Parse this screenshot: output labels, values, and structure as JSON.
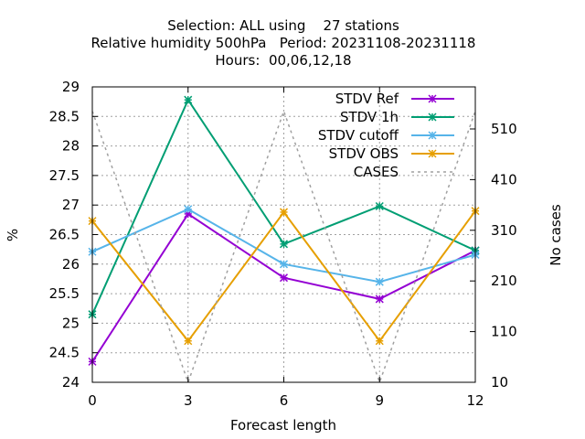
{
  "chart_data": {
    "type": "line",
    "title_lines": [
      "Selection: ALL using    27 stations",
      "Relative humidity 500hPa   Period: 20231108-20231118",
      "Hours:  00,06,12,18"
    ],
    "xlabel": "Forecast length",
    "ylabel": "%",
    "y2label": "No cases",
    "x": [
      0,
      3,
      6,
      9,
      12
    ],
    "xlim": [
      0,
      12
    ],
    "ylim": [
      24,
      29
    ],
    "y2lim": [
      10,
      593
    ],
    "x_ticks": [
      0,
      3,
      6,
      9,
      12
    ],
    "y_ticks": [
      24,
      24.5,
      25,
      25.5,
      26,
      26.5,
      27,
      27.5,
      28,
      28.5,
      29
    ],
    "y_tick_labels": [
      "24",
      "24.5",
      "25",
      "25.5",
      "26",
      "26.5",
      "27",
      "27.5",
      "28",
      "28.5",
      "29"
    ],
    "y2_ticks": [
      10,
      110,
      210,
      310,
      410,
      510
    ],
    "grid": true,
    "legend_position": "top-right",
    "series": [
      {
        "name": "STDV Ref",
        "color": "#9400d3",
        "marker": "star",
        "axis": "y",
        "values": [
          24.35,
          26.85,
          25.77,
          25.41,
          26.23
        ]
      },
      {
        "name": "STDV 1h",
        "color": "#009e73",
        "marker": "star",
        "axis": "y",
        "values": [
          25.15,
          28.78,
          26.34,
          26.98,
          26.23
        ]
      },
      {
        "name": "STDV cutoff",
        "color": "#56b4e9",
        "marker": "star",
        "axis": "y",
        "values": [
          26.21,
          26.93,
          26.0,
          25.7,
          26.16
        ]
      },
      {
        "name": "STDV OBS",
        "color": "#e69f00",
        "marker": "star",
        "axis": "y",
        "values": [
          26.73,
          24.7,
          26.88,
          24.7,
          26.9
        ]
      },
      {
        "name": "CASES",
        "color": "#a0a0a0",
        "marker": "none",
        "dashed": true,
        "axis": "y2",
        "values": [
          545,
          10,
          545,
          10,
          545
        ]
      }
    ]
  }
}
